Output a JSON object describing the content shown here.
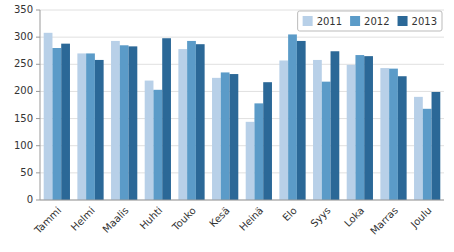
{
  "chart_data": {
    "type": "bar",
    "categories": [
      "Tammi",
      "Helmi",
      "Maalis",
      "Huhti",
      "Touko",
      "Kesä",
      "Heinä",
      "Elo",
      "Syys",
      "Loka",
      "Marras",
      "Joulu"
    ],
    "series": [
      {
        "name": "2011",
        "color": "#b8d0e8",
        "values": [
          308,
          270,
          293,
          220,
          278,
          225,
          144,
          257,
          258,
          249,
          243,
          190
        ]
      },
      {
        "name": "2012",
        "color": "#5b9bc8",
        "values": [
          280,
          270,
          285,
          203,
          293,
          235,
          178,
          305,
          218,
          267,
          242,
          168
        ]
      },
      {
        "name": "2013",
        "color": "#2b6897",
        "values": [
          288,
          258,
          283,
          298,
          287,
          232,
          217,
          293,
          274,
          265,
          228,
          199
        ]
      }
    ],
    "ylim": [
      0,
      350
    ],
    "yticks": [
      0,
      50,
      100,
      150,
      200,
      250,
      300,
      350
    ],
    "grid": true,
    "legend": "upper right"
  }
}
